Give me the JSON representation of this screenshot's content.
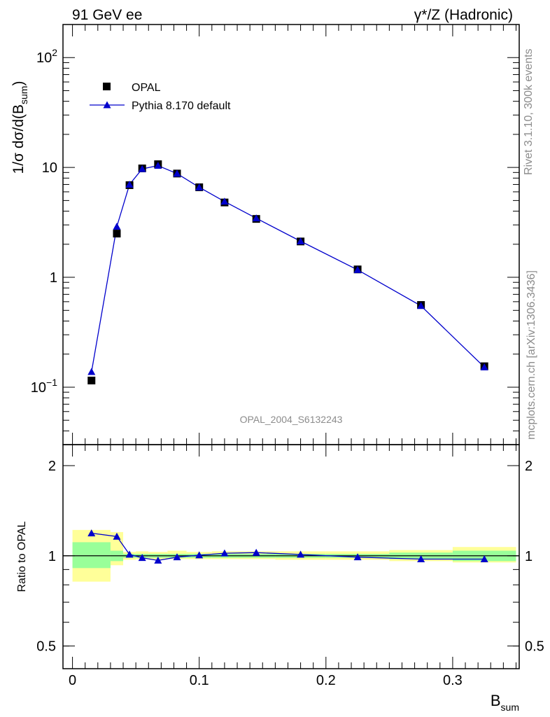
{
  "header": {
    "left": "91 GeV ee",
    "right_prefix": "γ*/Z",
    "right_suffix": "(Hadronic)"
  },
  "side_labels": {
    "rivet": "Rivet 3.1.10,  300k events",
    "mcplots": "mcplots.cern.ch [arXiv:1306.3436]"
  },
  "watermark": "OPAL_2004_S6132243",
  "chart_data": [
    {
      "type": "scatter",
      "panel": "main",
      "yscale": "log",
      "ylim": [
        0.03,
        200
      ],
      "xlim": [
        -0.0075,
        0.3525
      ],
      "ylabel": "1/σ dσ/d(B",
      "ylabel_sub": "sum",
      "ylabel_close": ")",
      "yticks": [
        {
          "value": 0.1,
          "base": "10",
          "exp": "−1"
        },
        {
          "value": 1,
          "label": "1"
        },
        {
          "value": 10,
          "label": "10"
        },
        {
          "value": 100,
          "base": "10",
          "exp": "2"
        }
      ],
      "legend_position": "top-left",
      "series": [
        {
          "name": "OPAL",
          "marker": "square",
          "color": "#000000",
          "x": [
            0.015,
            0.035,
            0.045,
            0.055,
            0.0675,
            0.0825,
            0.1,
            0.12,
            0.145,
            0.18,
            0.225,
            0.275,
            0.325
          ],
          "y": [
            0.115,
            2.5,
            6.9,
            9.8,
            10.7,
            8.8,
            6.6,
            4.8,
            3.4,
            2.12,
            1.18,
            0.56,
            0.155
          ]
        },
        {
          "name": "Pythia 8.170 default",
          "marker": "triangle",
          "color": "#0000cc",
          "line": true,
          "x": [
            0.015,
            0.035,
            0.045,
            0.055,
            0.0675,
            0.0825,
            0.1,
            0.12,
            0.145,
            0.18,
            0.225,
            0.275,
            0.325
          ],
          "y": [
            0.138,
            2.9,
            7.0,
            9.7,
            10.4,
            8.8,
            6.6,
            4.9,
            3.45,
            2.13,
            1.17,
            0.55,
            0.152
          ]
        }
      ]
    },
    {
      "type": "line",
      "panel": "ratio",
      "yscale": "log",
      "ylim": [
        0.42,
        2.35
      ],
      "xlim": [
        -0.0075,
        0.3525
      ],
      "xlabel": "B",
      "xlabel_sub": "sum",
      "ylabel": "Ratio to OPAL",
      "xticks": [
        {
          "value": 0,
          "label": "0"
        },
        {
          "value": 0.1,
          "label": "0.1"
        },
        {
          "value": 0.2,
          "label": "0.2"
        },
        {
          "value": 0.3,
          "label": "0.3"
        }
      ],
      "yticks": [
        {
          "value": 0.5,
          "label": "0.5"
        },
        {
          "value": 1,
          "label": "1"
        },
        {
          "value": 2,
          "label": "2"
        }
      ],
      "bands": {
        "edges": [
          0,
          0.03,
          0.04,
          0.05,
          0.06,
          0.075,
          0.09,
          0.11,
          0.13,
          0.16,
          0.2,
          0.25,
          0.3,
          0.35
        ],
        "stat_color": "#99ff99",
        "syst_color": "#ffff99",
        "stat": [
          [
            0.91,
            1.11
          ],
          [
            0.96,
            1.04
          ],
          [
            0.985,
            1.015
          ],
          [
            0.985,
            1.015
          ],
          [
            0.985,
            1.015
          ],
          [
            0.985,
            1.015
          ],
          [
            0.985,
            1.015
          ],
          [
            0.985,
            1.015
          ],
          [
            0.985,
            1.015
          ],
          [
            0.985,
            1.015
          ],
          [
            0.985,
            1.015
          ],
          [
            0.975,
            1.025
          ],
          [
            0.96,
            1.04
          ]
        ],
        "syst": [
          [
            0.82,
            1.22
          ],
          [
            0.93,
            1.2
          ],
          [
            0.97,
            1.03
          ],
          [
            0.975,
            1.035
          ],
          [
            0.97,
            1.03
          ],
          [
            0.975,
            1.04
          ],
          [
            0.975,
            1.03
          ],
          [
            0.975,
            1.035
          ],
          [
            0.975,
            1.035
          ],
          [
            0.97,
            1.035
          ],
          [
            0.97,
            1.035
          ],
          [
            0.96,
            1.045
          ],
          [
            0.95,
            1.07
          ]
        ]
      },
      "series": [
        {
          "name": "Pythia 8.170 default",
          "marker": "triangle",
          "color": "#0000cc",
          "x": [
            0.015,
            0.035,
            0.045,
            0.055,
            0.0675,
            0.0825,
            0.1,
            0.12,
            0.145,
            0.18,
            0.225,
            0.275,
            0.325
          ],
          "y": [
            1.19,
            1.16,
            1.01,
            0.985,
            0.965,
            0.99,
            1.005,
            1.02,
            1.025,
            1.01,
            0.99,
            0.975,
            0.975
          ]
        }
      ]
    }
  ]
}
